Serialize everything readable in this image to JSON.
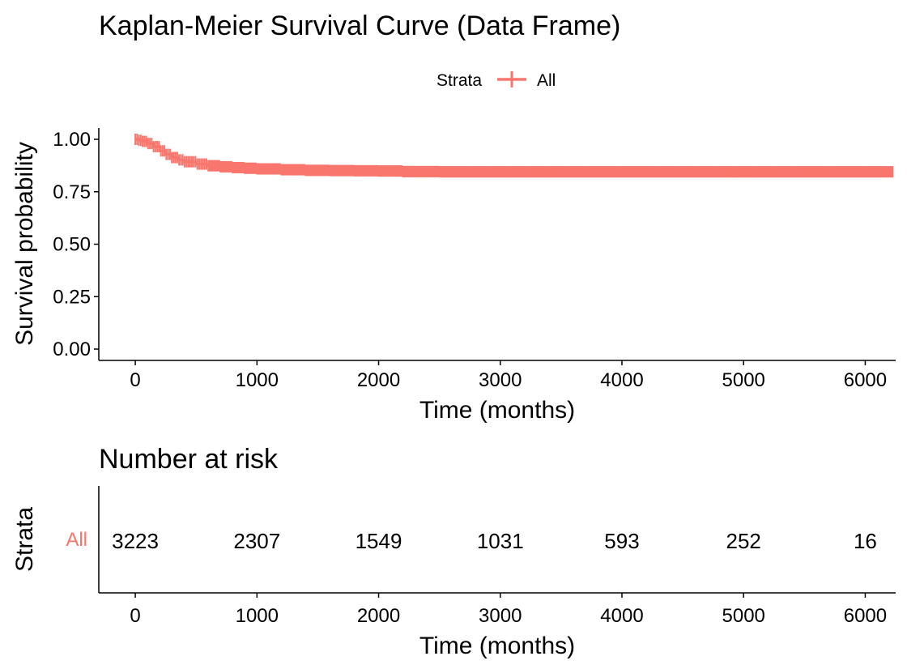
{
  "colors": {
    "strata": "#F8766D",
    "axis": "#000000",
    "background": "#FFFFFF"
  },
  "chart_data": [
    {
      "type": "line",
      "subtype": "kaplan-meier",
      "title": "Kaplan-Meier Survival Curve (Data Frame)",
      "xlabel": "Time (months)",
      "ylabel": "Survival probability",
      "xlim": [
        -300,
        6250
      ],
      "ylim": [
        0,
        1
      ],
      "xticks": [
        0,
        1000,
        2000,
        3000,
        4000,
        5000,
        6000
      ],
      "yticks": [
        "0.00",
        "0.25",
        "0.50",
        "0.75",
        "1.00"
      ],
      "grid": false,
      "legend": {
        "title": "Strata",
        "position": "top",
        "entries": [
          "All"
        ]
      },
      "series": [
        {
          "name": "All",
          "x": [
            0,
            30,
            60,
            100,
            150,
            200,
            250,
            300,
            350,
            400,
            500,
            600,
            700,
            800,
            900,
            1000,
            1200,
            1400,
            1600,
            1800,
            2000,
            2200,
            2500,
            3000,
            4000,
            5000,
            6000,
            6230
          ],
          "y": [
            1.0,
            0.995,
            0.99,
            0.98,
            0.965,
            0.945,
            0.928,
            0.913,
            0.902,
            0.893,
            0.882,
            0.874,
            0.869,
            0.865,
            0.862,
            0.859,
            0.855,
            0.852,
            0.851,
            0.85,
            0.849,
            0.846,
            0.845,
            0.845,
            0.845,
            0.845,
            0.845,
            0.845
          ]
        }
      ]
    },
    {
      "type": "table",
      "title": "Number at risk",
      "xlabel": "Time (months)",
      "ylabel": "Strata",
      "xlim": [
        -300,
        6250
      ],
      "xticks": [
        0,
        1000,
        2000,
        3000,
        4000,
        5000,
        6000
      ],
      "rows": [
        {
          "name": "All",
          "times": [
            0,
            1000,
            2000,
            3000,
            4000,
            5000,
            6000
          ],
          "values": [
            3223,
            2307,
            1549,
            1031,
            593,
            252,
            16
          ]
        }
      ]
    }
  ]
}
